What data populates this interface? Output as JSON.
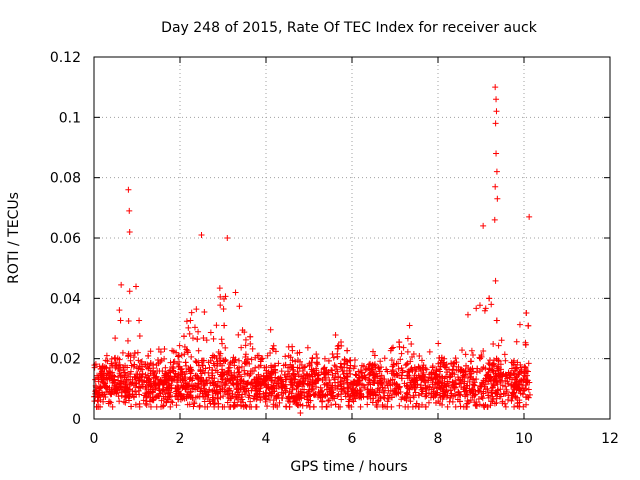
{
  "chart_data": {
    "type": "scatter",
    "title": "Day 248 of 2015, Rate Of TEC Index for receiver auck",
    "xlabel": "GPS time / hours",
    "ylabel": "ROTI / TECUs",
    "xlim": [
      0,
      12
    ],
    "ylim": [
      0,
      0.12
    ],
    "x_ticks": [
      0,
      2,
      4,
      6,
      8,
      10,
      12
    ],
    "x_tick_labels": [
      "0",
      "2",
      "4",
      "6",
      "8",
      "10",
      "12"
    ],
    "y_ticks": [
      0,
      0.02,
      0.04,
      0.06,
      0.08,
      0.1,
      0.12
    ],
    "y_tick_labels": [
      "0",
      "0.02",
      "0.04",
      "0.06",
      "0.08",
      "0.1",
      "0.12"
    ],
    "grid": true,
    "marker": "+",
    "color": "#ff0000",
    "x_range_data": [
      0,
      10.15
    ],
    "baseline_typical": 0.012,
    "notable_points": [
      {
        "x": 0.8,
        "y": 0.076
      },
      {
        "x": 0.82,
        "y": 0.069
      },
      {
        "x": 0.83,
        "y": 0.062
      },
      {
        "x": 2.5,
        "y": 0.061
      },
      {
        "x": 3.1,
        "y": 0.06
      },
      {
        "x": 4.8,
        "y": 0.002
      },
      {
        "x": 9.33,
        "y": 0.11
      },
      {
        "x": 9.35,
        "y": 0.106
      },
      {
        "x": 9.36,
        "y": 0.102
      },
      {
        "x": 9.34,
        "y": 0.098
      },
      {
        "x": 9.35,
        "y": 0.088
      },
      {
        "x": 9.37,
        "y": 0.082
      },
      {
        "x": 9.33,
        "y": 0.077
      },
      {
        "x": 9.38,
        "y": 0.073
      },
      {
        "x": 9.32,
        "y": 0.066
      },
      {
        "x": 10.12,
        "y": 0.067
      },
      {
        "x": 9.05,
        "y": 0.064
      }
    ]
  }
}
